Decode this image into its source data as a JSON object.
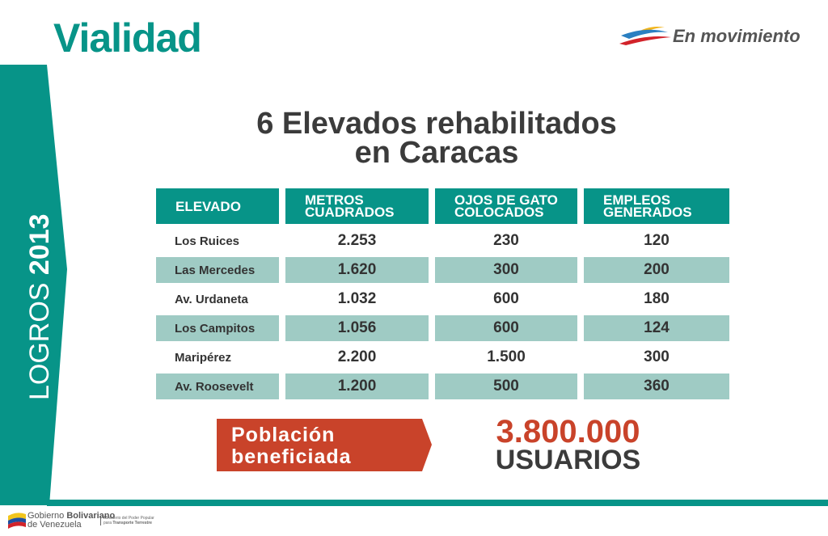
{
  "header": {
    "title": "Vialidad",
    "logo_text": "En movimiento"
  },
  "side_band": {
    "label_light": "LOGROS",
    "label_bold": "2013"
  },
  "heading": {
    "line1": "6 Elevados rehabilitados",
    "line2": "en Caracas"
  },
  "table": {
    "headers": [
      [
        "ELEVADO"
      ],
      [
        "METROS",
        "CUADRADOS"
      ],
      [
        "OJOS DE GATO",
        "COLOCADOS"
      ],
      [
        "EMPLEOS",
        "GENERADOS"
      ]
    ],
    "rows": [
      [
        "Los Ruices",
        "2.253",
        "230",
        "120"
      ],
      [
        "Las Mercedes",
        "1.620",
        "300",
        "200"
      ],
      [
        "Av. Urdaneta",
        "1.032",
        "600",
        "180"
      ],
      [
        "Los Campitos",
        "1.056",
        "600",
        "124"
      ],
      [
        "Maripérez",
        "2.200",
        "1.500",
        "300"
      ],
      [
        "Av. Roosevelt",
        "1.200",
        "500",
        "360"
      ]
    ]
  },
  "summary": {
    "label_line1": "Población",
    "label_line2": "beneficiada",
    "value": "3.800.000",
    "unit": "USUARIOS"
  },
  "footer": {
    "gov_line1_light": "Gobierno ",
    "gov_line1_bold": "Bolivariano",
    "gov_line2": "de Venezuela",
    "ministry_line1": "Ministerio del Poder Popular",
    "ministry_line2_light": "para ",
    "ministry_line2_bold": "Transporte Terrestre"
  },
  "colors": {
    "teal": "#079488",
    "light_teal": "#9fcbc4",
    "red": "#c9432a",
    "dark_text": "#3b3b3b"
  }
}
